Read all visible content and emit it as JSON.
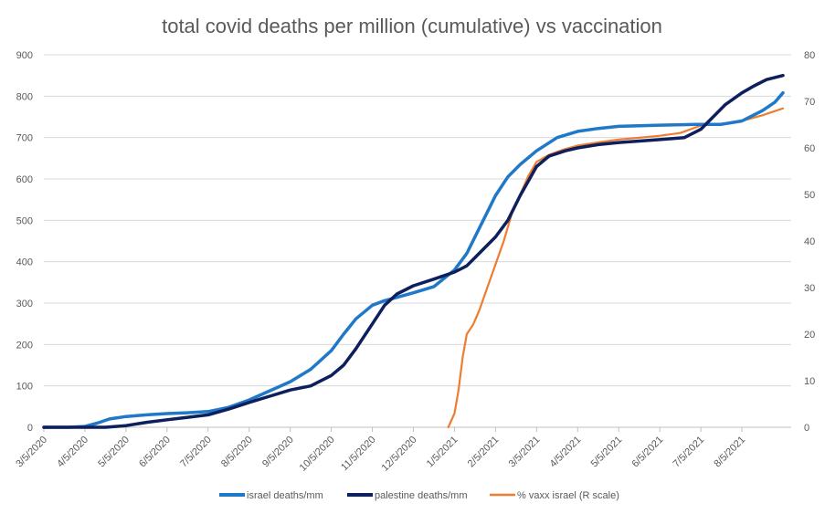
{
  "chart_data": {
    "type": "line",
    "title": "total covid deaths per million (cumulative) vs vaccination",
    "x_tick_labels": [
      "3/5/2020",
      "4/5/2020",
      "5/5/2020",
      "6/5/2020",
      "7/5/2020",
      "8/5/2020",
      "9/5/2020",
      "10/5/2020",
      "11/5/2020",
      "12/5/2020",
      "1/5/2021",
      "2/5/2021",
      "3/5/2021",
      "4/5/2021",
      "5/5/2021",
      "6/5/2021",
      "7/5/2021",
      "8/5/2021"
    ],
    "x_range_months": [
      0,
      18.2
    ],
    "y_left": {
      "range": [
        0,
        900
      ],
      "ticks": [
        0,
        100,
        200,
        300,
        400,
        500,
        600,
        700,
        800,
        900
      ]
    },
    "y_right": {
      "range": [
        0,
        80
      ],
      "ticks": [
        0,
        10,
        20,
        30,
        40,
        50,
        60,
        70,
        80
      ]
    },
    "grid": true,
    "legend_position": "bottom",
    "series": [
      {
        "name": "israel deaths/mm",
        "axis": "left",
        "color": "#1F78C8",
        "points": [
          [
            0,
            0
          ],
          [
            0.6,
            0
          ],
          [
            1.0,
            2
          ],
          [
            1.3,
            10
          ],
          [
            1.6,
            20
          ],
          [
            2.0,
            26
          ],
          [
            2.5,
            30
          ],
          [
            3.0,
            33
          ],
          [
            3.5,
            35
          ],
          [
            4.0,
            38
          ],
          [
            4.5,
            48
          ],
          [
            5.0,
            66
          ],
          [
            5.5,
            88
          ],
          [
            6.0,
            110
          ],
          [
            6.5,
            140
          ],
          [
            7.0,
            185
          ],
          [
            7.3,
            225
          ],
          [
            7.6,
            262
          ],
          [
            8.0,
            295
          ],
          [
            8.3,
            306
          ],
          [
            8.6,
            314
          ],
          [
            9.0,
            325
          ],
          [
            9.5,
            340
          ],
          [
            10.0,
            380
          ],
          [
            10.3,
            420
          ],
          [
            10.6,
            480
          ],
          [
            10.8,
            520
          ],
          [
            11.0,
            560
          ],
          [
            11.3,
            605
          ],
          [
            11.6,
            635
          ],
          [
            12.0,
            668
          ],
          [
            12.5,
            700
          ],
          [
            13.0,
            715
          ],
          [
            13.5,
            722
          ],
          [
            14.0,
            727
          ],
          [
            15.0,
            730
          ],
          [
            16.0,
            732
          ],
          [
            16.5,
            732
          ],
          [
            17.0,
            740
          ],
          [
            17.5,
            765
          ],
          [
            17.8,
            785
          ],
          [
            18.0,
            808
          ]
        ]
      },
      {
        "name": "palestine deaths/mm",
        "axis": "left",
        "color": "#0D1F5C",
        "points": [
          [
            0,
            0
          ],
          [
            1.5,
            0
          ],
          [
            2.0,
            4
          ],
          [
            2.5,
            12
          ],
          [
            3.0,
            18
          ],
          [
            3.5,
            24
          ],
          [
            4.0,
            30
          ],
          [
            4.5,
            44
          ],
          [
            5.0,
            60
          ],
          [
            5.5,
            75
          ],
          [
            6.0,
            90
          ],
          [
            6.5,
            100
          ],
          [
            7.0,
            125
          ],
          [
            7.3,
            150
          ],
          [
            7.6,
            190
          ],
          [
            8.0,
            250
          ],
          [
            8.3,
            295
          ],
          [
            8.6,
            322
          ],
          [
            9.0,
            342
          ],
          [
            9.5,
            358
          ],
          [
            10.0,
            375
          ],
          [
            10.3,
            390
          ],
          [
            10.6,
            420
          ],
          [
            11.0,
            460
          ],
          [
            11.3,
            500
          ],
          [
            11.6,
            560
          ],
          [
            12.0,
            630
          ],
          [
            12.3,
            655
          ],
          [
            12.7,
            668
          ],
          [
            13.0,
            675
          ],
          [
            13.5,
            683
          ],
          [
            14.0,
            688
          ],
          [
            15.0,
            695
          ],
          [
            15.6,
            700
          ],
          [
            16.0,
            720
          ],
          [
            16.3,
            750
          ],
          [
            16.6,
            780
          ],
          [
            17.0,
            808
          ],
          [
            17.3,
            825
          ],
          [
            17.6,
            840
          ],
          [
            18.0,
            850
          ]
        ]
      },
      {
        "name": "% vaxx israel (R scale)",
        "axis": "right",
        "color": "#ED7D31",
        "points": [
          [
            9.85,
            0
          ],
          [
            10.0,
            3
          ],
          [
            10.1,
            8
          ],
          [
            10.2,
            15
          ],
          [
            10.3,
            20
          ],
          [
            10.45,
            22
          ],
          [
            10.6,
            25
          ],
          [
            10.8,
            30
          ],
          [
            11.0,
            35
          ],
          [
            11.2,
            40
          ],
          [
            11.4,
            46
          ],
          [
            11.6,
            50
          ],
          [
            11.8,
            54
          ],
          [
            12.0,
            57
          ],
          [
            12.3,
            58.5
          ],
          [
            12.6,
            59.5
          ],
          [
            13.0,
            60.5
          ],
          [
            13.5,
            61.2
          ],
          [
            14.0,
            61.8
          ],
          [
            14.5,
            62.2
          ],
          [
            15.0,
            62.6
          ],
          [
            15.5,
            63.2
          ],
          [
            16.0,
            64.8
          ],
          [
            16.5,
            65.2
          ],
          [
            17.0,
            65.8
          ],
          [
            17.5,
            67.0
          ],
          [
            18.0,
            68.5
          ]
        ]
      }
    ]
  }
}
